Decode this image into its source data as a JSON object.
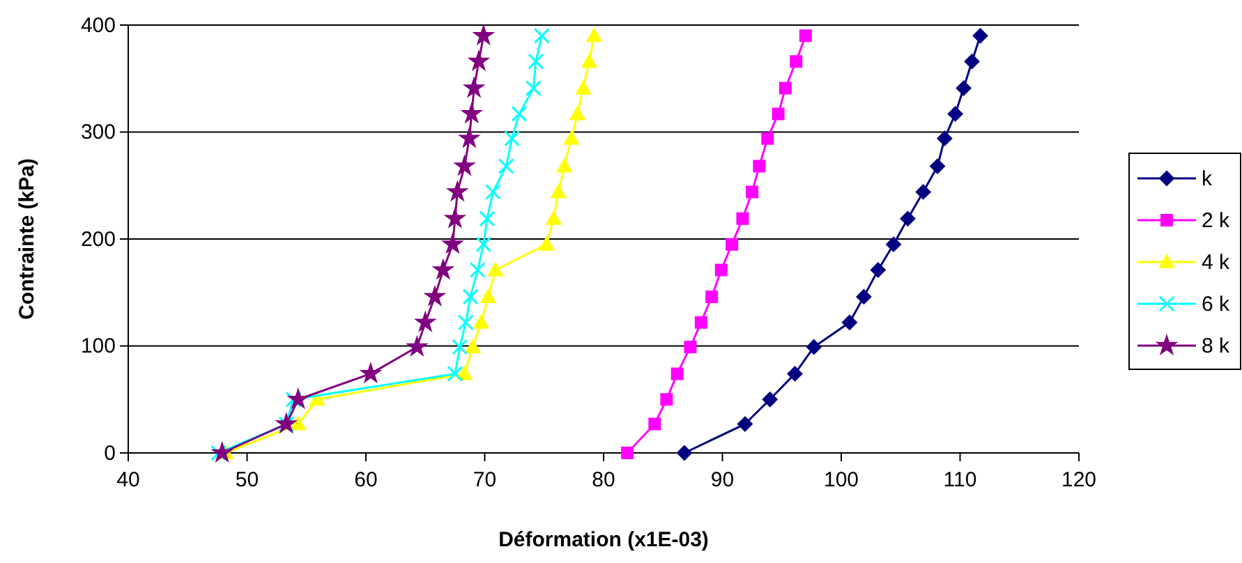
{
  "chart_data": {
    "type": "line",
    "xlabel": "Déformation  (x1E-03)",
    "ylabel": "Contrainte (kPa)",
    "xlim": [
      40,
      120
    ],
    "xticks": [
      40,
      50,
      60,
      70,
      80,
      90,
      100,
      110,
      120
    ],
    "ylim": [
      0,
      400
    ],
    "yticks": [
      0,
      100,
      200,
      300,
      400
    ],
    "grid": "y",
    "legend": "right",
    "series": [
      {
        "name": "k",
        "color": "#000080",
        "marker": "diamond",
        "x": [
          86.8,
          91.9,
          94.0,
          96.1,
          97.7,
          100.7,
          101.9,
          103.1,
          104.4,
          105.6,
          106.9,
          108.1,
          108.7,
          109.6,
          110.3,
          111.0,
          111.7
        ],
        "values": [
          0,
          27,
          50,
          74,
          99,
          122,
          146,
          171,
          195,
          219,
          244,
          268,
          294,
          317,
          341,
          366,
          390
        ]
      },
      {
        "name": "2 k",
        "color": "#ff00ff",
        "marker": "square",
        "x": [
          82.0,
          84.3,
          85.3,
          86.2,
          87.3,
          88.2,
          89.1,
          89.9,
          90.8,
          91.7,
          92.5,
          93.1,
          93.8,
          94.7,
          95.3,
          96.2,
          97.0
        ],
        "values": [
          0,
          27,
          50,
          74,
          99,
          122,
          146,
          171,
          195,
          219,
          244,
          268,
          294,
          317,
          341,
          366,
          390
        ]
      },
      {
        "name": "4 k",
        "color": "#ffff00",
        "marker": "triangle",
        "x": [
          48.2,
          54.3,
          55.9,
          68.3,
          69.0,
          69.7,
          70.3,
          70.9,
          75.2,
          75.8,
          76.2,
          76.7,
          77.3,
          77.8,
          78.3,
          78.8,
          79.2
        ],
        "values": [
          0,
          27,
          50,
          74,
          99,
          122,
          146,
          171,
          195,
          219,
          244,
          268,
          294,
          317,
          341,
          366,
          390
        ]
      },
      {
        "name": "6 k",
        "color": "#00ffff",
        "marker": "cross",
        "x": [
          47.6,
          53.3,
          53.9,
          67.5,
          67.9,
          68.4,
          68.8,
          69.4,
          69.9,
          70.2,
          70.7,
          71.8,
          72.3,
          72.9,
          74.1,
          74.3,
          74.8
        ],
        "values": [
          0,
          27,
          50,
          74,
          99,
          122,
          146,
          171,
          195,
          219,
          244,
          268,
          294,
          317,
          341,
          366,
          390
        ]
      },
      {
        "name": "8 k",
        "color": "#800080",
        "marker": "star",
        "x": [
          47.9,
          53.3,
          54.3,
          60.4,
          64.3,
          65.0,
          65.8,
          66.5,
          67.3,
          67.5,
          67.7,
          68.3,
          68.7,
          68.9,
          69.1,
          69.5,
          69.9
        ],
        "values": [
          0,
          27,
          50,
          74,
          99,
          122,
          146,
          171,
          195,
          219,
          244,
          268,
          294,
          317,
          341,
          366,
          390
        ]
      }
    ]
  }
}
